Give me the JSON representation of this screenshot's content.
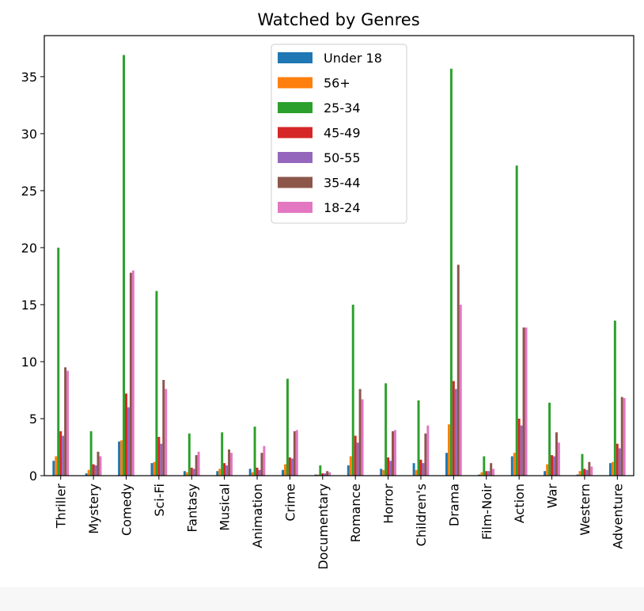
{
  "chart_data": {
    "type": "bar",
    "title": "Watched by Genres",
    "xlabel": "",
    "ylabel": "",
    "ylim": [
      0,
      38.6
    ],
    "yticks": [
      0,
      5,
      10,
      15,
      20,
      25,
      30,
      35
    ],
    "legend_position": "top-center",
    "categories": [
      "Thriller",
      "Mystery",
      "Comedy",
      "Sci-Fi",
      "Fantasy",
      "Musical",
      "Animation",
      "Crime",
      "Documentary",
      "Romance",
      "Horror",
      "Children's",
      "Drama",
      "Film-Noir",
      "Action",
      "War",
      "Western",
      "Adventure"
    ],
    "series": [
      {
        "name": "Under 18",
        "color": "#1f77b4",
        "values": [
          1.3,
          0.2,
          3.0,
          1.1,
          0.4,
          0.4,
          0.6,
          0.5,
          0.1,
          0.9,
          0.6,
          1.1,
          2.0,
          0.1,
          1.7,
          0.4,
          0.1,
          1.1
        ]
      },
      {
        "name": "56+",
        "color": "#ff7f0e",
        "values": [
          1.7,
          0.5,
          3.1,
          1.2,
          0.3,
          0.6,
          0.3,
          1.0,
          0.1,
          1.7,
          0.5,
          0.5,
          4.5,
          0.3,
          2.0,
          1.0,
          0.4,
          1.2
        ]
      },
      {
        "name": "25-34",
        "color": "#2ca02c",
        "values": [
          20.0,
          3.9,
          36.9,
          16.2,
          3.7,
          3.8,
          4.3,
          8.5,
          0.9,
          15.0,
          8.1,
          6.6,
          35.7,
          1.7,
          27.2,
          6.4,
          1.9,
          13.6
        ]
      },
      {
        "name": "45-49",
        "color": "#d62728",
        "values": [
          3.9,
          1.0,
          7.2,
          3.4,
          0.7,
          1.1,
          0.7,
          1.6,
          0.2,
          3.5,
          1.6,
          1.4,
          8.3,
          0.4,
          5.0,
          1.8,
          0.6,
          2.8
        ]
      },
      {
        "name": "50-55",
        "color": "#9467bd",
        "values": [
          3.5,
          0.9,
          6.0,
          2.8,
          0.6,
          0.9,
          0.5,
          1.5,
          0.2,
          2.9,
          1.3,
          1.1,
          7.6,
          0.4,
          4.4,
          1.7,
          0.5,
          2.4
        ]
      },
      {
        "name": "35-44",
        "color": "#8c564b",
        "values": [
          9.5,
          2.1,
          17.8,
          8.4,
          1.8,
          2.3,
          2.0,
          3.9,
          0.4,
          7.6,
          3.9,
          3.7,
          18.5,
          1.1,
          13.0,
          3.8,
          1.2,
          6.9
        ]
      },
      {
        "name": "18-24",
        "color": "#e377c2",
        "values": [
          9.2,
          1.7,
          18.0,
          7.6,
          2.1,
          2.0,
          2.6,
          4.0,
          0.3,
          6.7,
          4.0,
          4.4,
          15.0,
          0.6,
          13.0,
          2.9,
          0.8,
          6.8
        ]
      }
    ]
  }
}
